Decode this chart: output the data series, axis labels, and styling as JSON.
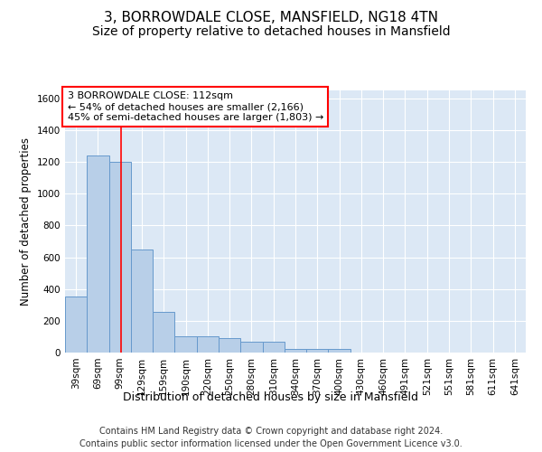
{
  "title": "3, BORROWDALE CLOSE, MANSFIELD, NG18 4TN",
  "subtitle": "Size of property relative to detached houses in Mansfield",
  "xlabel": "Distribution of detached houses by size in Mansfield",
  "ylabel": "Number of detached properties",
  "bar_color": "#b8cfe8",
  "bar_edge_color": "#6699cc",
  "background_color": "#dce8f5",
  "grid_color": "#ffffff",
  "categories": [
    "39sqm",
    "69sqm",
    "99sqm",
    "129sqm",
    "159sqm",
    "190sqm",
    "220sqm",
    "250sqm",
    "280sqm",
    "310sqm",
    "340sqm",
    "370sqm",
    "400sqm",
    "430sqm",
    "460sqm",
    "491sqm",
    "521sqm",
    "551sqm",
    "581sqm",
    "611sqm",
    "641sqm"
  ],
  "values": [
    350,
    1240,
    1200,
    650,
    255,
    105,
    105,
    90,
    70,
    70,
    20,
    20,
    20,
    0,
    0,
    0,
    0,
    0,
    0,
    0,
    0
  ],
  "ylim": [
    0,
    1650
  ],
  "yticks": [
    0,
    200,
    400,
    600,
    800,
    1000,
    1200,
    1400,
    1600
  ],
  "red_line_x": 2.07,
  "annotation_line1": "3 BORROWDALE CLOSE: 112sqm",
  "annotation_line2": "← 54% of detached houses are smaller (2,166)",
  "annotation_line3": "45% of semi-detached houses are larger (1,803) →",
  "footer_line1": "Contains HM Land Registry data © Crown copyright and database right 2024.",
  "footer_line2": "Contains public sector information licensed under the Open Government Licence v3.0.",
  "title_fontsize": 11,
  "subtitle_fontsize": 10,
  "xlabel_fontsize": 9,
  "ylabel_fontsize": 8.5,
  "tick_fontsize": 7.5,
  "annotation_fontsize": 8,
  "footer_fontsize": 7
}
